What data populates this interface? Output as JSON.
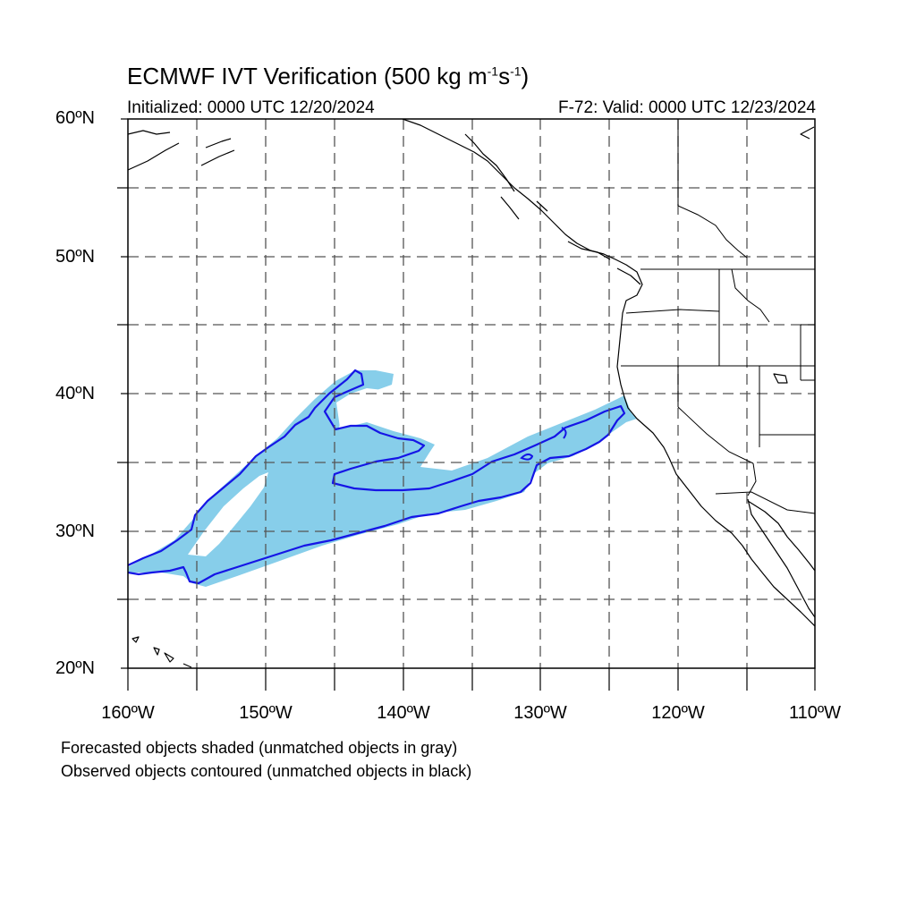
{
  "header": {
    "title_main": "ECMWF IVT Verification (500 kg m",
    "title_exp1": "-1",
    "title_mid": "s",
    "title_exp2": "-1",
    "title_end": ")",
    "initialized": "Initialized: 0000 UTC 12/20/2024",
    "valid": "F-72: Valid: 0000 UTC 12/23/2024"
  },
  "axes": {
    "lat_labels": [
      "60ºN",
      "50ºN",
      "40ºN",
      "30ºN",
      "20ºN"
    ],
    "lon_labels": [
      "160ºW",
      "150ºW",
      "140ºW",
      "130ºW",
      "120ºW",
      "110ºW"
    ]
  },
  "legend": {
    "line1": "Forecasted objects shaded (unmatched objects in gray)",
    "line2": "Observed objects contoured (unmatched objects in black)"
  },
  "colors": {
    "forecast_fill": "#87ceea",
    "observed_contour": "#1515e6",
    "coast": "#000000",
    "grid": "#555555"
  }
}
